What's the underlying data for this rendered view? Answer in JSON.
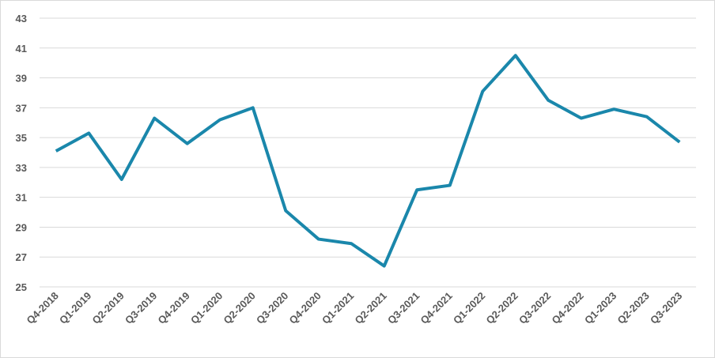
{
  "chart_data": {
    "type": "line",
    "categories": [
      "Q4-2018",
      "Q1-2019",
      "Q2-2019",
      "Q3-2019",
      "Q4-2019",
      "Q1-2020",
      "Q2-2020",
      "Q3-2020",
      "Q4-2020",
      "Q1-2021",
      "Q2-2021",
      "Q3-2021",
      "Q4-2021",
      "Q1-2022",
      "Q2-2022",
      "Q3-2022",
      "Q4-2022",
      "Q1-2023",
      "Q2-2023",
      "Q3-2023"
    ],
    "series": [
      {
        "color": "#1a87ab",
        "values": [
          34.1,
          35.3,
          32.2,
          36.3,
          34.6,
          36.2,
          37.0,
          30.1,
          28.2,
          27.9,
          26.4,
          31.5,
          31.8,
          38.1,
          40.5,
          37.5,
          36.3,
          36.9,
          36.4,
          34.7
        ]
      }
    ],
    "ylim": [
      25,
      43
    ],
    "yticks": [
      25,
      27,
      29,
      31,
      33,
      35,
      37,
      39,
      41,
      43
    ],
    "grid": true
  }
}
